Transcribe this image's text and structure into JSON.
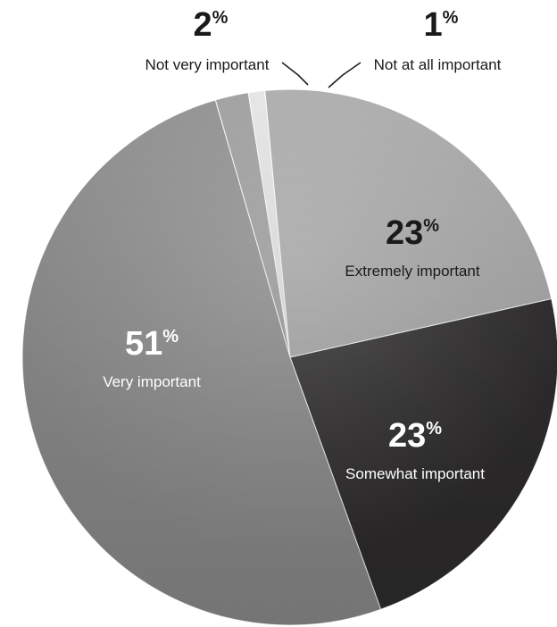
{
  "chart_data": {
    "type": "pie",
    "unit": "%",
    "slices": [
      {
        "label": "Not at all important",
        "value": 1,
        "color": "#e4e4e4"
      },
      {
        "label": "Extremely important",
        "value": 23,
        "color": "#a9a9a9"
      },
      {
        "label": "Somewhat important",
        "value": 23,
        "color": "#2f2d2d"
      },
      {
        "label": "Very important",
        "value": 51,
        "color": "#8e8e8e"
      },
      {
        "label": "Not very important",
        "value": 2,
        "color": "#9c9c9c"
      }
    ]
  }
}
